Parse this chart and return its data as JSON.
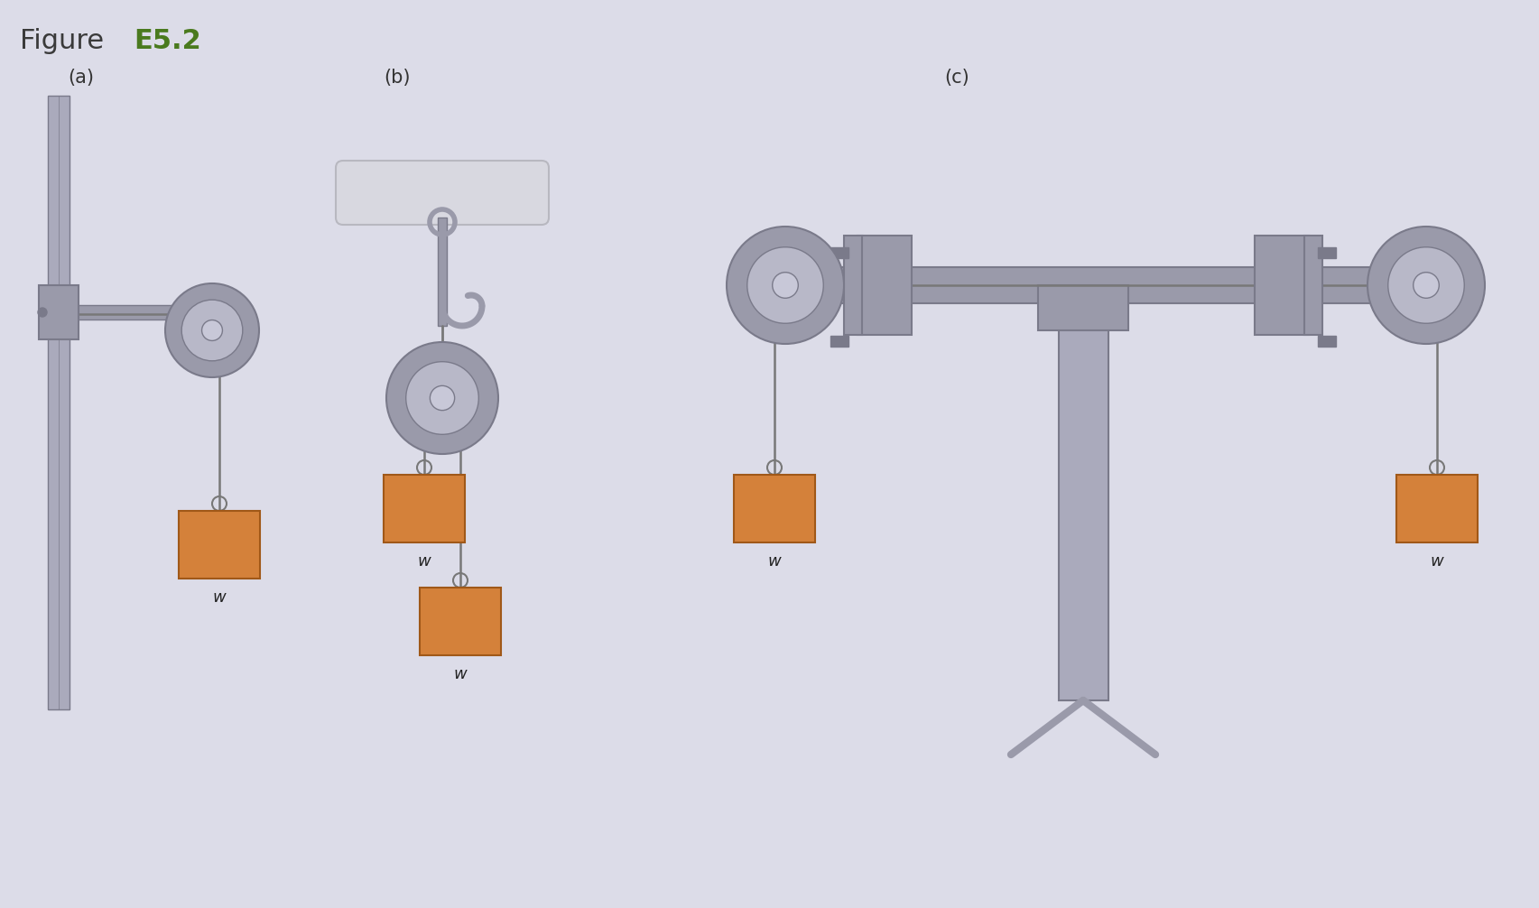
{
  "title_text": "Figure ",
  "title_bold": "E5.2",
  "title_color_normal": "#3a3a3a",
  "title_color_bold": "#4a7a1e",
  "bg_color": "#dcdce8",
  "pulley_outer": "#9a9aaa",
  "pulley_inner": "#b8b8c8",
  "pulley_hub": "#c8c8d8",
  "rope_color": "#787878",
  "weight_color": "#d4813a",
  "weight_border": "#a05818",
  "metal_color": "#9a9aaa",
  "metal_dark": "#7a7a8a",
  "label_a": "(a)",
  "label_b": "(b)",
  "label_c": "(c)",
  "label_w": "w",
  "ceil_color": "#d0d0d8",
  "pole_color": "#aaaabc"
}
